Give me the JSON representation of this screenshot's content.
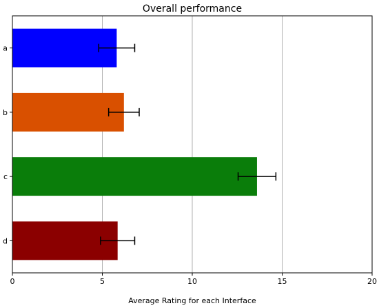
{
  "chart_data": {
    "type": "bar",
    "orientation": "horizontal",
    "title": "Overall performance",
    "xlabel": "Average Rating for each Interface",
    "ylabel": "",
    "xlim": [
      0,
      20
    ],
    "xticks": [
      0,
      5,
      10,
      15,
      20
    ],
    "grid": "x",
    "categories": [
      "a",
      "b",
      "c",
      "d"
    ],
    "values": [
      5.8,
      6.2,
      13.6,
      5.85
    ],
    "errors": [
      1.0,
      0.85,
      1.05,
      0.95
    ],
    "colors": [
      "#0000ff",
      "#d95000",
      "#0a7d0a",
      "#8b0000"
    ]
  }
}
